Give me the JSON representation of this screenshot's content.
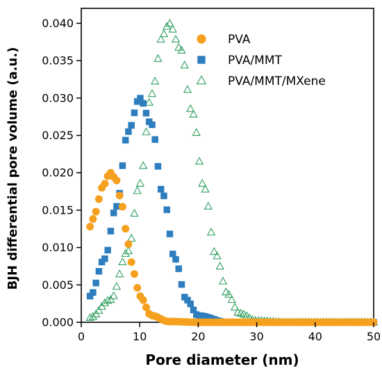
{
  "chart_data": {
    "type": "scatter",
    "title": "",
    "xlabel": "Pore diameter (nm)",
    "ylabel": "BJH differential pore volume (a.u.)",
    "xlim": [
      0,
      50
    ],
    "ylim": [
      0,
      0.042
    ],
    "x_ticks": [
      "0",
      "10",
      "20",
      "30",
      "40",
      "50"
    ],
    "y_ticks": [
      "0.000",
      "0.005",
      "0.010",
      "0.015",
      "0.020",
      "0.025",
      "0.030",
      "0.035",
      "0.040"
    ],
    "grid": false,
    "legend_position": "top-right",
    "series": [
      {
        "name": "PVA",
        "marker": "circle",
        "color": "#F5A01E",
        "peak_x": 5,
        "peak_y": 0.02,
        "x_range": [
          1.5,
          50
        ],
        "points_count": 97,
        "values": [
          [
            1.5,
            0.0128
          ],
          [
            2.5,
            0.0148
          ],
          [
            3.5,
            0.018
          ],
          [
            5.0,
            0.02
          ],
          [
            6.0,
            0.019
          ],
          [
            7.0,
            0.0155
          ],
          [
            8.0,
            0.0105
          ],
          [
            9.0,
            0.0065
          ],
          [
            10.0,
            0.0035
          ],
          [
            12.0,
            0.0009
          ],
          [
            15.0,
            0.0001
          ],
          [
            20.0,
            0.0
          ],
          [
            50.0,
            0.0
          ]
        ]
      },
      {
        "name": "PVA/MMT",
        "marker": "square",
        "color": "#2E7EBF",
        "peak_x": 10,
        "peak_y": 0.03,
        "x_range": [
          1.5,
          50
        ],
        "points_count": 97,
        "values": [
          [
            1.5,
            0.0035
          ],
          [
            4.0,
            0.0085
          ],
          [
            6.0,
            0.0155
          ],
          [
            8.0,
            0.0255
          ],
          [
            10.0,
            0.03
          ],
          [
            12.0,
            0.0265
          ],
          [
            14.0,
            0.017
          ],
          [
            16.0,
            0.0085
          ],
          [
            18.0,
            0.003
          ],
          [
            20.0,
            0.0009
          ],
          [
            25.0,
            0.0
          ],
          [
            50.0,
            0.0
          ]
        ]
      },
      {
        "name": "PVA/MMT/MXene",
        "marker": "triangle-open",
        "color": "#2E9E5E",
        "peak_x": 15,
        "peak_y": 0.04,
        "x_range": [
          1.5,
          50
        ],
        "points_count": 97,
        "values": [
          [
            1.5,
            0.0006
          ],
          [
            5.0,
            0.003
          ],
          [
            8.0,
            0.0095
          ],
          [
            10.0,
            0.0185
          ],
          [
            12.0,
            0.0305
          ],
          [
            14.0,
            0.0385
          ],
          [
            15.0,
            0.04
          ],
          [
            17.0,
            0.0365
          ],
          [
            19.0,
            0.028
          ],
          [
            21.0,
            0.018
          ],
          [
            23.0,
            0.009
          ],
          [
            25.0,
            0.0038
          ],
          [
            27.0,
            0.0012
          ],
          [
            30.0,
            0.0002
          ],
          [
            35.0,
            0.0
          ],
          [
            50.0,
            0.0
          ]
        ]
      }
    ]
  }
}
